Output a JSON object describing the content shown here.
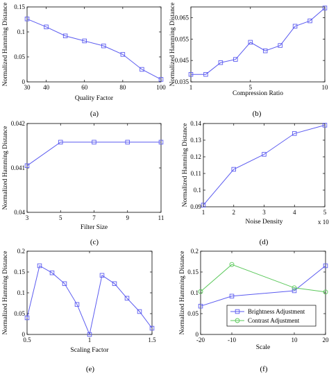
{
  "chart_data": [
    {
      "id": "a",
      "type": "line",
      "caption": "(a)",
      "xlabel": "Quality Factor",
      "ylabel": "Normalized Hamming Distance",
      "xlim": [
        30,
        100
      ],
      "ylim": [
        0,
        0.15
      ],
      "xticks": [
        30,
        40,
        60,
        80,
        100
      ],
      "yticks": [
        0,
        0.05,
        0.1,
        0.15
      ],
      "xtick_labels": [
        "30",
        "40",
        "60",
        "80",
        "100"
      ],
      "ytick_labels": [
        "0",
        "0.05",
        "0.1",
        "0.15"
      ],
      "color": "#5a5af0",
      "marker": "square",
      "series": [
        {
          "x": [
            30,
            40,
            50,
            60,
            70,
            80,
            90,
            100
          ],
          "y": [
            0.126,
            0.11,
            0.092,
            0.082,
            0.072,
            0.055,
            0.025,
            0.005
          ]
        }
      ]
    },
    {
      "id": "b",
      "type": "line",
      "caption": "(b)",
      "xlabel": "Compression Ratio",
      "ylabel": "Normalized Hamming Distance",
      "xlim": [
        1,
        10
      ],
      "ylim": [
        0.035,
        0.07
      ],
      "xticks": [
        1,
        5,
        10
      ],
      "yticks": [
        0.035,
        0.045,
        0.055,
        0.065
      ],
      "xtick_labels": [
        "1",
        "5",
        "10"
      ],
      "ytick_labels": [
        "0.035",
        "0.045",
        "0.055",
        "0.065"
      ],
      "color": "#5a5af0",
      "marker": "square",
      "series": [
        {
          "x": [
            1,
            2,
            3,
            4,
            5,
            6,
            7,
            8,
            9,
            10
          ],
          "y": [
            0.0385,
            0.0385,
            0.044,
            0.0455,
            0.0535,
            0.0495,
            0.052,
            0.061,
            0.0635,
            0.0695
          ]
        }
      ]
    },
    {
      "id": "c",
      "type": "line",
      "caption": "(c)",
      "xlabel": "Filter Size",
      "ylabel": "Normalized Hamming Distance",
      "xlim": [
        3,
        11
      ],
      "ylim": [
        0.04,
        0.042
      ],
      "xticks": [
        3,
        5,
        7,
        9,
        11
      ],
      "yticks": [
        0.04,
        0.041,
        0.042
      ],
      "xtick_labels": [
        "3",
        "5",
        "7",
        "9",
        "11"
      ],
      "ytick_labels": [
        "0.04",
        "0.041",
        "0.042"
      ],
      "color": "#5a5af0",
      "marker": "square",
      "series": [
        {
          "x": [
            3,
            5,
            7,
            9,
            11
          ],
          "y": [
            0.04105,
            0.04158,
            0.04158,
            0.04158,
            0.04158
          ]
        }
      ]
    },
    {
      "id": "d",
      "type": "line",
      "caption": "(d)",
      "xlabel": "Noise Density",
      "ylabel": "Normalized Hamming Distance",
      "x_multiplier": "x 10",
      "x_multiplier_exp": "-3",
      "xlim": [
        1,
        5
      ],
      "ylim": [
        0.09,
        0.14
      ],
      "xticks": [
        1,
        2,
        3,
        4,
        5
      ],
      "yticks": [
        0.09,
        0.1,
        0.11,
        0.12,
        0.13,
        0.14
      ],
      "xtick_labels": [
        "1",
        "2",
        "3",
        "4",
        "5"
      ],
      "ytick_labels": [
        "0.09",
        "0.1",
        "0.11",
        "0.12",
        "0.13",
        "0.14"
      ],
      "color": "#5a5af0",
      "marker": "square",
      "series": [
        {
          "x": [
            1,
            2,
            3,
            4,
            5
          ],
          "y": [
            0.091,
            0.1125,
            0.1215,
            0.134,
            0.139
          ]
        }
      ]
    },
    {
      "id": "e",
      "type": "line",
      "caption": "(e)",
      "xlabel": "Scaling Factor",
      "ylabel": "Normalized Hamming Distance",
      "xlim": [
        0.5,
        1.5
      ],
      "ylim": [
        0,
        0.2
      ],
      "xticks": [
        0.5,
        1,
        1.5
      ],
      "yticks": [
        0,
        0.05,
        0.1,
        0.15,
        0.2
      ],
      "xtick_labels": [
        "0.5",
        "1",
        "1.5"
      ],
      "ytick_labels": [
        "0",
        "0.05",
        "0.1",
        "0.15",
        "0.2"
      ],
      "color": "#5a5af0",
      "marker": "square",
      "series": [
        {
          "x": [
            0.5,
            0.6,
            0.7,
            0.8,
            0.9,
            1.0,
            1.1,
            1.2,
            1.3,
            1.4,
            1.5
          ],
          "y": [
            0.04,
            0.165,
            0.148,
            0.122,
            0.072,
            0.0,
            0.142,
            0.122,
            0.087,
            0.055,
            0.015
          ]
        }
      ]
    },
    {
      "id": "f",
      "type": "line",
      "caption": "(f)",
      "xlabel": "Scale",
      "ylabel": "Normalized Hamming Distance",
      "xlim": [
        -20,
        20
      ],
      "ylim": [
        0,
        0.2
      ],
      "xticks": [
        -20,
        -10,
        10,
        20
      ],
      "yticks": [
        0,
        0.05,
        0.1,
        0.15,
        0.2
      ],
      "xtick_labels": [
        "-20",
        "-10",
        "10",
        "20"
      ],
      "ytick_labels": [
        "0",
        "0.05",
        "0.1",
        "0.15",
        "0.2"
      ],
      "legend": "bottom-right",
      "series": [
        {
          "name": "Brightness Adjustment",
          "color": "#5a5af0",
          "marker": "square",
          "x": [
            -20,
            -10,
            10,
            20
          ],
          "y": [
            0.068,
            0.092,
            0.105,
            0.165
          ]
        },
        {
          "name": "Contrast Adjustment",
          "color": "#5ac85a",
          "marker": "circle",
          "x": [
            -20,
            -10,
            10,
            20
          ],
          "y": [
            0.103,
            0.168,
            0.112,
            0.102
          ]
        }
      ]
    }
  ]
}
